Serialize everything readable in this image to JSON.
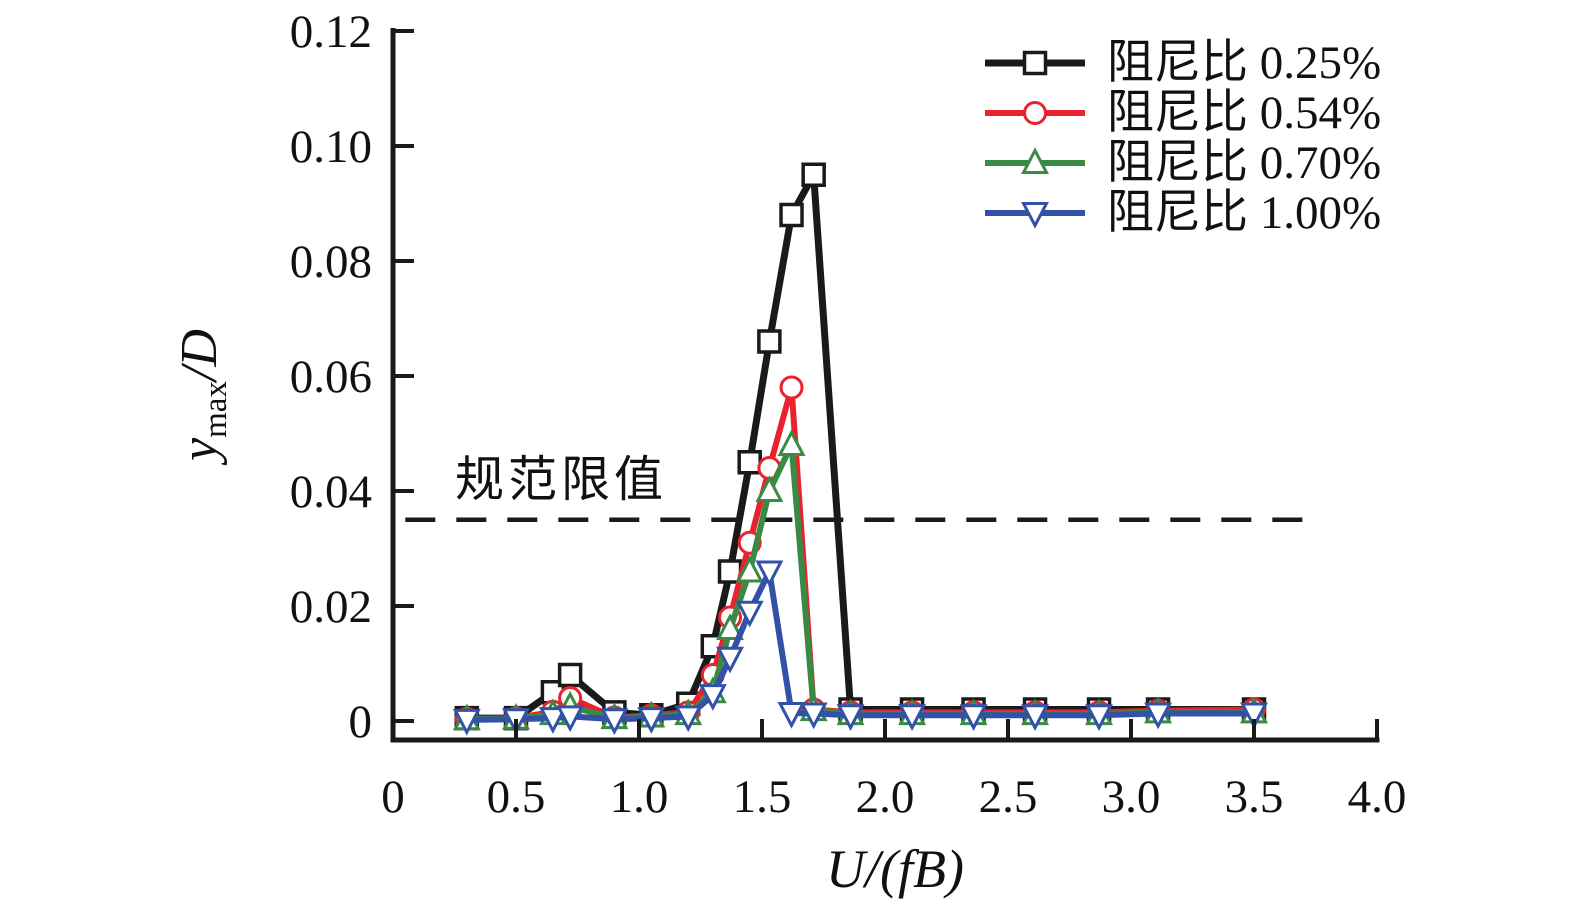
{
  "chart_data": {
    "type": "line",
    "title": "",
    "xlabel": "U/(fB)",
    "ylabel": "ymax/D",
    "ylabel_parts": {
      "var": "y",
      "sub": "max",
      "rest": "/D"
    },
    "xlim": [
      0,
      4.0
    ],
    "ylim": [
      0,
      0.12
    ],
    "grid": false,
    "legend_position": "top-right",
    "x_ticks": [
      {
        "v": 0,
        "label": "0"
      },
      {
        "v": 0.5,
        "label": "0.5"
      },
      {
        "v": 1.0,
        "label": "1.0"
      },
      {
        "v": 1.5,
        "label": "1.5"
      },
      {
        "v": 2.0,
        "label": "2.0"
      },
      {
        "v": 2.5,
        "label": "2.5"
      },
      {
        "v": 3.0,
        "label": "3.0"
      },
      {
        "v": 3.5,
        "label": "3.5"
      },
      {
        "v": 4.0,
        "label": "4.0"
      }
    ],
    "y_ticks": [
      {
        "v": 0,
        "label": "0"
      },
      {
        "v": 0.02,
        "label": "0.02"
      },
      {
        "v": 0.04,
        "label": "0.04"
      },
      {
        "v": 0.06,
        "label": "0.06"
      },
      {
        "v": 0.08,
        "label": "0.08"
      },
      {
        "v": 0.1,
        "label": "0.10"
      },
      {
        "v": 0.12,
        "label": "0.12"
      }
    ],
    "x": [
      0.3,
      0.5,
      0.65,
      0.72,
      0.9,
      1.05,
      1.2,
      1.3,
      1.37,
      1.45,
      1.53,
      1.62,
      1.71,
      1.86,
      2.11,
      2.36,
      2.61,
      2.87,
      3.11,
      3.5
    ],
    "series": [
      {
        "name": "阻尼比 0.25%",
        "color": "#1a1a1a",
        "marker": "square",
        "line_width": 7,
        "values": [
          0.0005,
          0.0005,
          0.005,
          0.008,
          0.0015,
          0.001,
          0.003,
          0.013,
          0.026,
          0.045,
          0.066,
          0.088,
          0.095,
          0.002,
          0.002,
          0.002,
          0.002,
          0.002,
          0.002,
          0.002
        ]
      },
      {
        "name": "阻尼比 0.54%",
        "color": "#e8232d",
        "marker": "circle",
        "line_width": 6,
        "values": [
          0.0004,
          0.0005,
          0.0016,
          0.004,
          0.0006,
          0.001,
          0.0015,
          0.008,
          0.018,
          0.031,
          0.044,
          0.058,
          0.002,
          0.0015,
          0.0015,
          0.0015,
          0.0015,
          0.0015,
          0.0018,
          0.002
        ]
      },
      {
        "name": "阻尼比 0.70%",
        "color": "#3a8a45",
        "marker": "triangle-up",
        "line_width": 6,
        "values": [
          0.0003,
          0.0004,
          0.0012,
          0.0025,
          0.0005,
          0.0008,
          0.0012,
          0.005,
          0.016,
          0.026,
          0.04,
          0.048,
          0.0019,
          0.0012,
          0.0012,
          0.0012,
          0.0012,
          0.0012,
          0.0015,
          0.0015
        ]
      },
      {
        "name": "阻尼比 1.00%",
        "color": "#3252a8",
        "marker": "triangle-down",
        "line_width": 6,
        "values": [
          0.0002,
          0.0003,
          0.0005,
          0.0008,
          0.0003,
          0.0005,
          0.0008,
          0.0045,
          0.011,
          0.019,
          0.026,
          0.0014,
          0.0013,
          0.001,
          0.001,
          0.001,
          0.001,
          0.001,
          0.0013,
          0.0013
        ]
      }
    ],
    "reference_line": {
      "label": "规范限值",
      "value": 0.035,
      "style": "dashed",
      "color": "#1a1a1a",
      "x_start": 0.05,
      "x_end": 3.7
    }
  }
}
